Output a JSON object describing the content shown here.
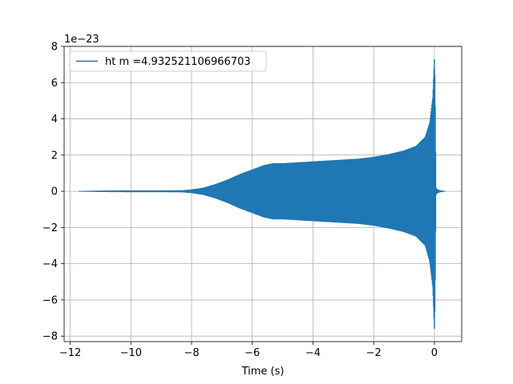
{
  "chart_data": {
    "type": "line",
    "title": "",
    "xlabel": "Time (s)",
    "ylabel": "",
    "y_offset_text": "1e−23",
    "y_scale": 1e-23,
    "xlim": [
      -12.2,
      0.9
    ],
    "ylim": [
      -8.3,
      8.0
    ],
    "x_ticks": [
      -12,
      -10,
      -8,
      -6,
      -4,
      -2,
      0
    ],
    "x_tick_labels": [
      "−12",
      "−10",
      "−8",
      "−6",
      "−4",
      "−2",
      "0"
    ],
    "y_ticks": [
      -8,
      -6,
      -4,
      -2,
      0,
      2,
      4,
      6,
      8
    ],
    "y_tick_labels": [
      "−8",
      "−6",
      "−4",
      "−2",
      "0",
      "2",
      "4",
      "6",
      "8"
    ],
    "grid": true,
    "legend_position": "top-left",
    "colors": {
      "series": "#1f77b4",
      "grid": "#b0b0b0",
      "axes": "#000000"
    },
    "series": [
      {
        "name": "ht m =4.932521106966703",
        "description_of_signal": "oscillating chirp; envelope (upper half-amplitude, units of 1e-23) given below",
        "envelope_x": [
          -11.7,
          -11.0,
          -10.0,
          -9.0,
          -8.3,
          -8.0,
          -7.6,
          -7.2,
          -6.8,
          -6.4,
          -6.0,
          -5.6,
          -5.3,
          -5.0,
          -4.5,
          -4.0,
          -3.5,
          -3.0,
          -2.5,
          -2.0,
          -1.5,
          -1.0,
          -0.6,
          -0.3,
          -0.15,
          -0.05,
          0.0,
          0.02,
          0.05,
          0.1,
          0.2,
          0.35
        ],
        "envelope_upper": [
          0.02,
          0.04,
          0.05,
          0.05,
          0.06,
          0.1,
          0.2,
          0.4,
          0.65,
          0.95,
          1.2,
          1.45,
          1.55,
          1.55,
          1.6,
          1.65,
          1.7,
          1.75,
          1.8,
          1.9,
          2.05,
          2.25,
          2.5,
          3.0,
          3.8,
          5.2,
          7.3,
          6.0,
          0.2,
          0.1,
          0.05,
          0.02
        ],
        "envelope_lower": [
          -0.02,
          -0.04,
          -0.05,
          -0.05,
          -0.06,
          -0.1,
          -0.2,
          -0.4,
          -0.65,
          -0.95,
          -1.2,
          -1.45,
          -1.55,
          -1.55,
          -1.6,
          -1.65,
          -1.7,
          -1.75,
          -1.8,
          -1.9,
          -2.05,
          -2.25,
          -2.5,
          -3.0,
          -3.9,
          -5.3,
          -7.6,
          -6.2,
          -0.2,
          -0.1,
          -0.05,
          -0.02
        ]
      }
    ]
  }
}
